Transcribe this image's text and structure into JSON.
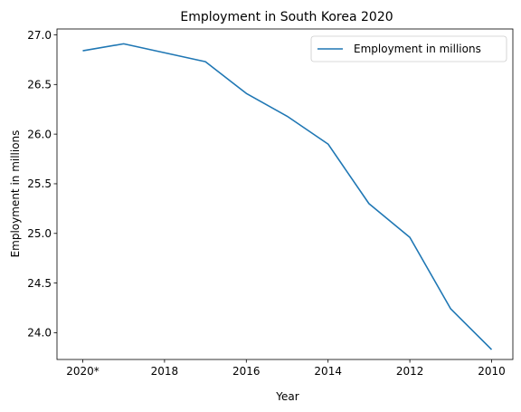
{
  "chart_data": {
    "type": "line",
    "title": "Employment in South Korea 2020",
    "xlabel": "Year",
    "ylabel": "Employment in millions",
    "x_order": "descending",
    "x": [
      "2020*",
      "2019",
      "2018",
      "2017",
      "2016",
      "2015",
      "2014",
      "2013",
      "2012",
      "2011",
      "2010"
    ],
    "x_tick_labels": [
      "2020*",
      "2018",
      "2016",
      "2014",
      "2012",
      "2010"
    ],
    "ylim": [
      23.73,
      27.0
    ],
    "y_ticks": [
      "24.0",
      "24.5",
      "25.0",
      "25.5",
      "26.0",
      "26.5",
      "27.0"
    ],
    "series": [
      {
        "name": "Employment in millions",
        "color": "#1f77b4",
        "values": [
          26.84,
          26.91,
          26.82,
          26.73,
          26.41,
          26.18,
          25.9,
          25.3,
          24.96,
          24.24,
          23.83
        ]
      }
    ],
    "legend_position": "top-right",
    "grid": false
  }
}
